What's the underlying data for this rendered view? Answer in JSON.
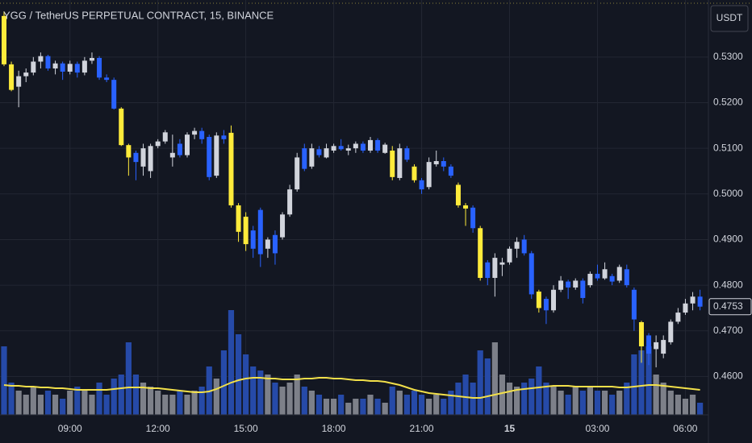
{
  "chart_data": {
    "type": "candlestick",
    "title": "YGG / TetherUS PERPETUAL CONTRACT, 15, BINANCE",
    "currency": "USDT",
    "categories": [
      "06:45",
      "07:00",
      "07:15",
      "07:30",
      "07:45",
      "08:00",
      "08:15",
      "08:30",
      "08:45",
      "09:00",
      "09:15",
      "09:30",
      "09:45",
      "10:00",
      "10:15",
      "10:30",
      "10:45",
      "11:00",
      "11:15",
      "11:30",
      "11:45",
      "12:00",
      "12:15",
      "12:30",
      "12:45",
      "13:00",
      "13:15",
      "13:30",
      "13:45",
      "14:00",
      "14:15",
      "14:30",
      "14:45",
      "15:00",
      "15:15",
      "15:30",
      "15:45",
      "16:00",
      "16:15",
      "16:30",
      "16:45",
      "17:00",
      "17:15",
      "17:30",
      "17:45",
      "18:00",
      "18:15",
      "18:30",
      "18:45",
      "19:00",
      "19:15",
      "19:30",
      "19:45",
      "20:00",
      "20:15",
      "20:30",
      "20:45",
      "21:00",
      "21:15",
      "21:30",
      "21:45",
      "22:00",
      "22:15",
      "22:30",
      "22:45",
      "23:00",
      "23:15",
      "23:30",
      "23:45",
      "00:00",
      "00:15",
      "00:30",
      "00:45",
      "01:00",
      "01:15",
      "01:30",
      "01:45",
      "02:00",
      "02:15",
      "02:30",
      "02:45",
      "03:00",
      "03:15",
      "03:30",
      "03:45",
      "04:00",
      "04:15",
      "04:30",
      "04:45",
      "05:00",
      "05:15",
      "05:30",
      "05:45",
      "06:00",
      "06:15",
      "06:30"
    ],
    "open": [
      0.539,
      0.5284,
      0.5235,
      0.5258,
      0.5266,
      0.529,
      0.5302,
      0.5275,
      0.5286,
      0.5268,
      0.5285,
      0.5266,
      0.5292,
      0.5298,
      0.5255,
      0.525,
      0.5187,
      0.5107,
      0.509,
      0.506,
      0.505,
      0.5105,
      0.5115,
      0.508,
      0.511,
      0.5085,
      0.513,
      0.5138,
      0.5125,
      0.504,
      0.5128,
      0.5134,
      0.4975,
      0.495,
      0.492,
      0.4965,
      0.488,
      0.491,
      0.4905,
      0.4955,
      0.501,
      0.51,
      0.506,
      0.5098,
      0.508,
      0.5095,
      0.5105,
      0.5095,
      0.51,
      0.511,
      0.5095,
      0.5118,
      0.509,
      0.5095,
      0.5035,
      0.51,
      0.506,
      0.503,
      0.5015,
      0.5065,
      0.5072,
      0.506,
      0.502,
      0.4975,
      0.497,
      0.4925,
      0.485,
      0.4816,
      0.4845,
      0.485,
      0.488,
      0.49,
      0.487,
      0.4786,
      0.477,
      0.4745,
      0.479,
      0.4808,
      0.4795,
      0.481,
      0.48,
      0.4825,
      0.4815,
      0.482,
      0.481,
      0.4835,
      0.479,
      0.4719,
      0.469,
      0.466,
      0.465,
      0.4675,
      0.472,
      0.474,
      0.476,
      0.4775
    ],
    "high": [
      0.54,
      0.529,
      0.527,
      0.5275,
      0.53,
      0.531,
      0.5305,
      0.5292,
      0.529,
      0.5292,
      0.529,
      0.53,
      0.531,
      0.5302,
      0.5262,
      0.5255,
      0.519,
      0.511,
      0.5095,
      0.511,
      0.511,
      0.512,
      0.514,
      0.513,
      0.512,
      0.5135,
      0.5145,
      0.5145,
      0.513,
      0.5135,
      0.514,
      0.515,
      0.498,
      0.496,
      0.493,
      0.497,
      0.4905,
      0.492,
      0.496,
      0.502,
      0.509,
      0.511,
      0.511,
      0.5105,
      0.511,
      0.511,
      0.512,
      0.5108,
      0.5115,
      0.5115,
      0.5125,
      0.5122,
      0.5112,
      0.5105,
      0.511,
      0.5105,
      0.5065,
      0.5035,
      0.508,
      0.5095,
      0.508,
      0.5065,
      0.5025,
      0.498,
      0.4975,
      0.493,
      0.4855,
      0.487,
      0.486,
      0.4885,
      0.4905,
      0.491,
      0.4875,
      0.479,
      0.4775,
      0.48,
      0.482,
      0.4812,
      0.4815,
      0.4815,
      0.483,
      0.4845,
      0.485,
      0.4825,
      0.4845,
      0.4845,
      0.4795,
      0.4722,
      0.4695,
      0.469,
      0.469,
      0.4725,
      0.475,
      0.477,
      0.4785,
      0.479
    ],
    "low": [
      0.528,
      0.5225,
      0.519,
      0.5245,
      0.526,
      0.5275,
      0.527,
      0.5262,
      0.525,
      0.5262,
      0.5255,
      0.526,
      0.5285,
      0.525,
      0.5245,
      0.5185,
      0.5105,
      0.504,
      0.503,
      0.504,
      0.5035,
      0.51,
      0.511,
      0.506,
      0.508,
      0.508,
      0.512,
      0.511,
      0.503,
      0.5035,
      0.511,
      0.497,
      0.4895,
      0.4875,
      0.486,
      0.484,
      0.486,
      0.4845,
      0.49,
      0.495,
      0.5005,
      0.505,
      0.5055,
      0.508,
      0.5078,
      0.509,
      0.5095,
      0.5085,
      0.509,
      0.509,
      0.509,
      0.509,
      0.5088,
      0.503,
      0.503,
      0.507,
      0.5025,
      0.5,
      0.501,
      0.506,
      0.505,
      0.5035,
      0.497,
      0.493,
      0.4915,
      0.481,
      0.48,
      0.4775,
      0.482,
      0.4845,
      0.486,
      0.4865,
      0.477,
      0.474,
      0.4715,
      0.474,
      0.4785,
      0.477,
      0.479,
      0.476,
      0.4795,
      0.481,
      0.4812,
      0.48,
      0.4805,
      0.4795,
      0.47,
      0.463,
      0.4625,
      0.462,
      0.464,
      0.467,
      0.4715,
      0.4735,
      0.4745,
      0.4745
    ],
    "close": [
      0.5284,
      0.5228,
      0.5258,
      0.5266,
      0.529,
      0.5302,
      0.5275,
      0.5286,
      0.5268,
      0.5285,
      0.5266,
      0.5292,
      0.5298,
      0.5255,
      0.525,
      0.5187,
      0.5107,
      0.508,
      0.507,
      0.51,
      0.5105,
      0.5115,
      0.5135,
      0.509,
      0.5085,
      0.513,
      0.5138,
      0.512,
      0.5037,
      0.5128,
      0.512,
      0.4975,
      0.4917,
      0.489,
      0.488,
      0.4868,
      0.49,
      0.487,
      0.4955,
      0.501,
      0.508,
      0.5055,
      0.51,
      0.5085,
      0.51,
      0.5105,
      0.5098,
      0.51,
      0.511,
      0.5095,
      0.5118,
      0.5095,
      0.5108,
      0.5037,
      0.51,
      0.5075,
      0.503,
      0.501,
      0.507,
      0.5072,
      0.506,
      0.504,
      0.4975,
      0.4968,
      0.4925,
      0.4816,
      0.4816,
      0.486,
      0.485,
      0.488,
      0.4895,
      0.487,
      0.478,
      0.475,
      0.4745,
      0.479,
      0.481,
      0.4795,
      0.481,
      0.4772,
      0.4825,
      0.4815,
      0.4835,
      0.4808,
      0.484,
      0.48,
      0.4725,
      0.4666,
      0.465,
      0.4675,
      0.468,
      0.472,
      0.474,
      0.476,
      0.4775,
      0.4753
    ],
    "volume": [
      85,
      40,
      30,
      25,
      35,
      25,
      30,
      25,
      20,
      30,
      35,
      30,
      25,
      40,
      25,
      45,
      50,
      90,
      50,
      40,
      35,
      30,
      25,
      25,
      30,
      25,
      30,
      35,
      60,
      45,
      80,
      130,
      100,
      75,
      60,
      55,
      50,
      40,
      35,
      40,
      50,
      35,
      30,
      25,
      20,
      20,
      25,
      15,
      20,
      20,
      25,
      20,
      15,
      35,
      30,
      25,
      30,
      25,
      20,
      25,
      20,
      30,
      40,
      50,
      40,
      80,
      70,
      90,
      50,
      40,
      35,
      40,
      45,
      60,
      40,
      35,
      30,
      25,
      35,
      30,
      35,
      30,
      30,
      25,
      30,
      40,
      75,
      80,
      85,
      50,
      40,
      30,
      25,
      20,
      25,
      15
    ],
    "volume_ma": [
      37,
      36,
      36,
      35,
      35,
      34,
      34,
      33,
      33,
      32,
      31,
      31,
      31,
      31,
      31,
      32,
      33,
      34,
      34,
      34,
      33,
      33,
      32,
      31,
      30,
      29,
      28,
      28,
      29,
      32,
      36,
      40,
      43,
      45,
      46,
      46,
      45,
      45,
      44,
      44,
      44,
      45,
      45,
      46,
      46,
      45,
      45,
      44,
      43,
      43,
      42,
      42,
      41,
      39,
      37,
      34,
      31,
      29,
      27,
      26,
      25,
      24,
      23,
      22,
      21,
      21,
      23,
      25,
      27,
      29,
      31,
      32,
      33,
      34,
      35,
      36,
      36,
      36,
      35,
      35,
      35,
      35,
      35,
      35,
      34,
      34,
      35,
      36,
      37,
      37,
      36,
      35,
      34,
      33,
      32,
      31
    ],
    "up_color": "#d1d4dc",
    "down_color": "#2962ff",
    "highlight_color": "#ffeb3b",
    "highlight": [
      0,
      1,
      16,
      17,
      31,
      32,
      33,
      53,
      56,
      62,
      63,
      65,
      73,
      87
    ],
    "volume_up_color": "#7d8089",
    "volume_down_color": "#264aa8",
    "volume_ma_color": "#f2e04a",
    "ylim": [
      0.4516,
      0.5425
    ],
    "yticks": [
      {
        "value": 0.46,
        "label": "0.4600"
      },
      {
        "value": 0.47,
        "label": "0.4700"
      },
      {
        "value": 0.48,
        "label": "0.4800"
      },
      {
        "value": 0.49,
        "label": "0.4900"
      },
      {
        "value": 0.5,
        "label": "0.5000"
      },
      {
        "value": 0.51,
        "label": "0.5100"
      },
      {
        "value": 0.52,
        "label": "0.5200"
      },
      {
        "value": 0.53,
        "label": "0.5300"
      }
    ],
    "xticks": [
      "09:00",
      "12:00",
      "15:00",
      "18:00",
      "21:00",
      {
        "value": "00:00",
        "label": "15"
      },
      "03:00",
      "06:00"
    ],
    "grid": true
  }
}
